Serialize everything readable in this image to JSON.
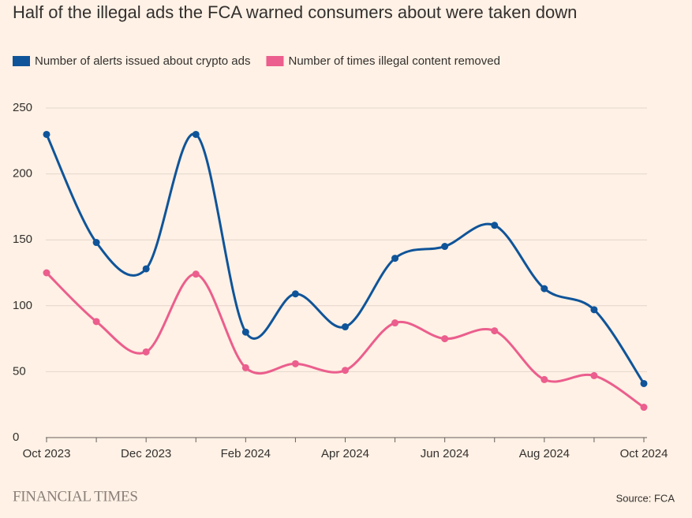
{
  "chart_data": {
    "type": "line",
    "title": "Half of the illegal ads the FCA warned consumers about were taken down",
    "categories": [
      "Oct 2023",
      null,
      "Dec 2023",
      null,
      "Feb 2024",
      null,
      "Apr 2024",
      null,
      "Jun 2024",
      null,
      "Aug 2024",
      null,
      "Oct 2024"
    ],
    "series": [
      {
        "name": "Number of alerts issued about crypto ads",
        "color": "#0f5499",
        "values": [
          230,
          148,
          128,
          230,
          80,
          109,
          84,
          136,
          145,
          161,
          113,
          97,
          41
        ]
      },
      {
        "name": "Number of times illegal content removed",
        "color": "#eb5e8d",
        "values": [
          125,
          88,
          65,
          124,
          53,
          56,
          51,
          87,
          75,
          81,
          44,
          47,
          23
        ]
      }
    ],
    "ylim": [
      0,
      250
    ],
    "yticks": [
      0,
      50,
      100,
      150,
      200,
      250
    ],
    "grid": true,
    "brand": "FINANCIAL TIMES",
    "source": "Source: FCA"
  }
}
